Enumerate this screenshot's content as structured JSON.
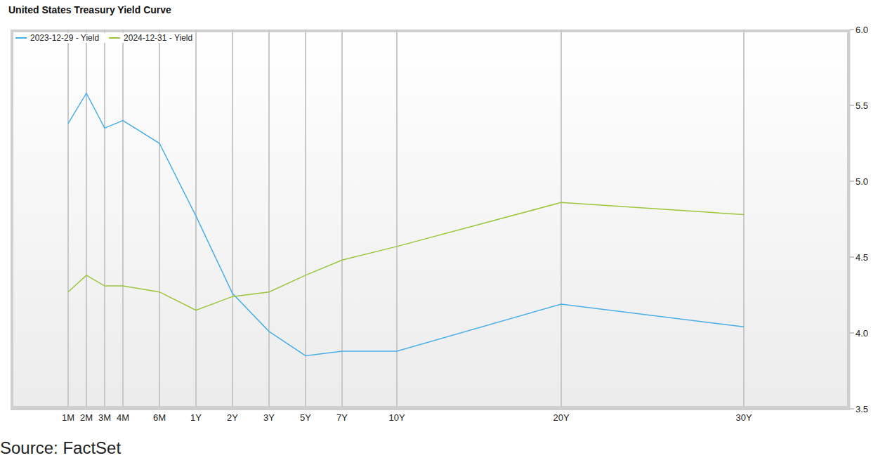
{
  "chart_data": {
    "type": "line",
    "title": "United States Treasury Yield Curve",
    "source": "Source: FactSet",
    "categories": [
      "1M",
      "2M",
      "3M",
      "4M",
      null,
      "6M",
      null,
      "1Y",
      null,
      "2Y",
      null,
      "3Y",
      null,
      "5Y",
      null,
      "7Y",
      null,
      null,
      "10Y",
      null,
      null,
      null,
      null,
      null,
      null,
      null,
      null,
      "20Y",
      null,
      null,
      null,
      null,
      null,
      null,
      null,
      null,
      null,
      "30Y"
    ],
    "series": [
      {
        "name": "2023-12-29 - Yield",
        "color": "#4aaee6",
        "values": [
          5.38,
          5.58,
          5.35,
          5.4,
          null,
          5.25,
          null,
          4.77,
          null,
          4.26,
          null,
          4.01,
          null,
          3.85,
          null,
          3.88,
          null,
          null,
          3.88,
          null,
          null,
          null,
          null,
          null,
          null,
          null,
          null,
          4.19,
          null,
          null,
          null,
          null,
          null,
          null,
          null,
          null,
          null,
          4.04
        ]
      },
      {
        "name": "2024-12-31 - Yield",
        "color": "#9bc63c",
        "values": [
          4.27,
          4.38,
          4.31,
          4.31,
          null,
          4.27,
          null,
          4.15,
          null,
          4.24,
          null,
          4.27,
          null,
          4.38,
          null,
          4.48,
          null,
          null,
          4.57,
          null,
          null,
          null,
          null,
          null,
          null,
          null,
          null,
          4.86,
          null,
          null,
          null,
          null,
          null,
          null,
          null,
          null,
          null,
          4.78
        ]
      }
    ],
    "ylim": [
      3.5,
      6.0
    ],
    "yticks": [
      3.5,
      {
        "value": 4,
        "label": "4.0"
      },
      4.5,
      {
        "value": 5,
        "label": "5.0"
      },
      5.5,
      {
        "value": 6,
        "label": "6.0"
      }
    ],
    "grid": true,
    "legend": "upper left"
  }
}
